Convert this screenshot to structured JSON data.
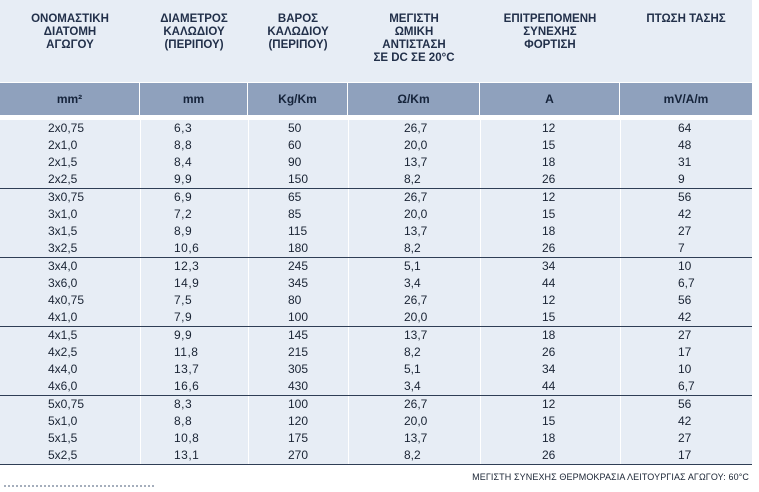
{
  "headers": [
    "ΟΝΟΜΑΣΤΙΚΗ\nΔΙΑΤΟΜΗ\nΑΓΩΓΟΥ",
    "ΔΙΑΜΕΤΡΟΣ\nΚΑΛΩΔΙΟΥ\n(ΠΕΡΙΠΟΥ)",
    "ΒΑΡΟΣ\nΚΑΛΩΔΙΟΥ\n(ΠΕΡΙΠΟΥ)",
    "ΜΕΓΙΣΤΗ\nΩΜΙΚΗ\nΑΝΤΙΣΤΑΣΗ\nΣΕ DC ΣΕ 20°C",
    "ΕΠΙΤΡΕΠΟΜΕΝΗ\nΣΥΝΕΧΗΣ\nΦΟΡΤΙΣΗ",
    "ΠΤΩΣΗ ΤΑΣΗΣ"
  ],
  "units": [
    "mm²",
    "mm",
    "Kg/Km",
    "Ω/Km",
    "A",
    "mV/A/m"
  ],
  "groups": [
    [
      [
        "2x0,75",
        "6,3",
        "50",
        "26,7",
        "12",
        "64"
      ],
      [
        "2x1,0",
        "8,8",
        "60",
        "20,0",
        "15",
        "48"
      ],
      [
        "2x1,5",
        "8,4",
        "90",
        "13,7",
        "18",
        "31"
      ],
      [
        "2x2,5",
        "9,9",
        "150",
        "8,2",
        "26",
        "9"
      ]
    ],
    [
      [
        "3x0,75",
        "6,9",
        "65",
        "26,7",
        "12",
        "56"
      ],
      [
        "3x1,0",
        "7,2",
        "85",
        "20,0",
        "15",
        "42"
      ],
      [
        "3x1,5",
        "8,9",
        "115",
        "13,7",
        "18",
        "27"
      ],
      [
        "3x2,5",
        "10,6",
        "180",
        "8,2",
        "26",
        "7"
      ]
    ],
    [
      [
        "3x4,0",
        "12,3",
        "245",
        "5,1",
        "34",
        "10"
      ],
      [
        "3x6,0",
        "14,9",
        "345",
        "3,4",
        "44",
        "6,7"
      ],
      [
        "4x0,75",
        "7,5",
        "80",
        "26,7",
        "12",
        "56"
      ],
      [
        "4x1,0",
        "7,9",
        "100",
        "20,0",
        "15",
        "42"
      ]
    ],
    [
      [
        "4x1,5",
        "9,9",
        "145",
        "13,7",
        "18",
        "27"
      ],
      [
        "4x2,5",
        "11,8",
        "215",
        "8,2",
        "26",
        "17"
      ],
      [
        "4x4,0",
        "13,7",
        "305",
        "5,1",
        "34",
        "10"
      ],
      [
        "4x6,0",
        "16,6",
        "430",
        "3,4",
        "44",
        "6,7"
      ]
    ],
    [
      [
        "5x0,75",
        "8,3",
        "100",
        "26,7",
        "12",
        "56"
      ],
      [
        "5x1,0",
        "8,8",
        "120",
        "20,0",
        "15",
        "42"
      ],
      [
        "5x1,5",
        "10,8",
        "175",
        "13,7",
        "18",
        "27"
      ],
      [
        "5x2,5",
        "13,1",
        "270",
        "8,2",
        "26",
        "17"
      ]
    ]
  ],
  "footnote": "ΜΕΓΙΣΤΗ ΣΥΝΕΧΗΣ ΘΕΡΜΟΚΡΑΣΙΑ ΛΕΙΤΟΥΡΓΙΑΣ ΑΓΩΓΟΥ: 60°C"
}
